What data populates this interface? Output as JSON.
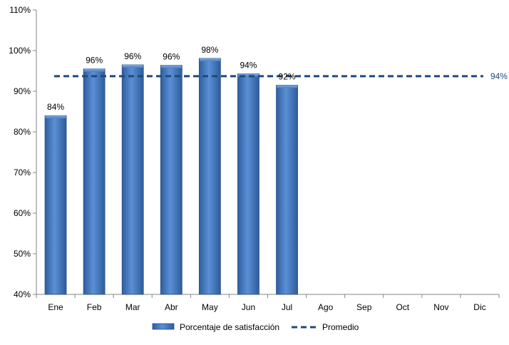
{
  "chart_data": {
    "type": "bar",
    "categories": [
      "Ene",
      "Feb",
      "Mar",
      "Abr",
      "May",
      "Jun",
      "Jul",
      "Ago",
      "Sep",
      "Oct",
      "Nov",
      "Dic"
    ],
    "series": [
      {
        "name": "Porcentaje de satisfacción",
        "type": "bar",
        "values": [
          84,
          95.5,
          96.5,
          96.4,
          98.1,
          94.3,
          91.5,
          null,
          null,
          null,
          null,
          null
        ],
        "data_labels": [
          "84%",
          "96%",
          "96%",
          "96%",
          "98%",
          "94%",
          "92%",
          "",
          "",
          "",
          "",
          ""
        ],
        "color": "#4F81BD"
      },
      {
        "name": "Promedio",
        "type": "line",
        "style": "dashed",
        "value": 93.7,
        "data_label": "94%",
        "color": "#1F497D"
      }
    ],
    "ylim": [
      40,
      110
    ],
    "yticks": [
      40,
      50,
      60,
      70,
      80,
      90,
      100,
      110
    ],
    "ytick_labels": [
      "40%",
      "50%",
      "60%",
      "70%",
      "80%",
      "90%",
      "100%",
      "110%"
    ],
    "grid": false,
    "legend_position": "bottom",
    "title": "",
    "xlabel": "",
    "ylabel": ""
  }
}
